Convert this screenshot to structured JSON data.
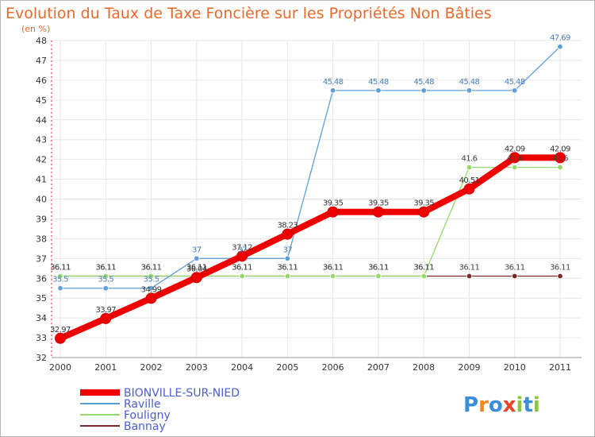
{
  "chart_data": {
    "type": "line",
    "title": "Evolution du Taux de Taxe Foncière sur les Propriétés Non Bâties",
    "ylabel": "(en %)",
    "xlabel": "",
    "x": [
      "2000",
      "2001",
      "2002",
      "2003",
      "2004",
      "2005",
      "2006",
      "2007",
      "2008",
      "2009",
      "2010",
      "2011"
    ],
    "ylim": [
      32,
      48
    ],
    "yticks": [
      32,
      33,
      34,
      35,
      36,
      37,
      38,
      39,
      40,
      41,
      42,
      43,
      44,
      45,
      46,
      47,
      48
    ],
    "grid": true,
    "series": [
      {
        "name": "BIONVILLE-SUR-NIED",
        "color": "#ee0000",
        "values": [
          32.97,
          33.97,
          34.99,
          36.04,
          37.12,
          38.23,
          39.35,
          39.35,
          39.35,
          40.51,
          42.09,
          42.09
        ],
        "labels": [
          "32.97",
          "33.97",
          "34.99",
          "36.04",
          "37.12",
          "38.23",
          "39.35",
          "39.35",
          "39.35",
          "40.51",
          "42.09",
          "42.09"
        ],
        "label_color": "#333333"
      },
      {
        "name": "Raville",
        "color": "#5f9fd6",
        "values": [
          35.5,
          35.5,
          35.5,
          37,
          37,
          37,
          45.48,
          45.48,
          45.48,
          45.48,
          45.48,
          47.69
        ],
        "labels": [
          "35.5",
          "35.5",
          "35.5",
          "37",
          "37",
          "37",
          "45.48",
          "45.48",
          "45.48",
          "45.48",
          "45.48",
          "47.69"
        ],
        "label_color": "#4a7eb8"
      },
      {
        "name": "Fouligny",
        "color": "#96d96a",
        "values": [
          36.11,
          36.11,
          36.11,
          36.11,
          36.11,
          36.11,
          36.11,
          36.11,
          36.11,
          41.6,
          41.6,
          41.6
        ],
        "labels": [
          "36.11",
          "36.11",
          "36.11",
          "36.11",
          "36.11",
          "36.11",
          "36.11",
          "36.11",
          "36.11",
          "41.6",
          "41.6",
          "41.6"
        ],
        "label_color": "#444444"
      },
      {
        "name": "Bannay",
        "color": "#7a2a2a",
        "values": [
          36.11,
          36.11,
          36.11,
          36.11,
          36.11,
          36.11,
          36.11,
          36.11,
          36.11,
          36.11,
          36.11,
          36.11
        ],
        "labels": [
          "36.11",
          "36.11",
          "36.11",
          "36.11",
          "36.11",
          "36.11",
          "36.11",
          "36.11",
          "36.11",
          "36.11",
          "36.11",
          "36.11"
        ],
        "label_color": "#444444"
      }
    ],
    "legend": {
      "position": "bottom-left"
    }
  },
  "logo": {
    "text": "Proxiti"
  }
}
